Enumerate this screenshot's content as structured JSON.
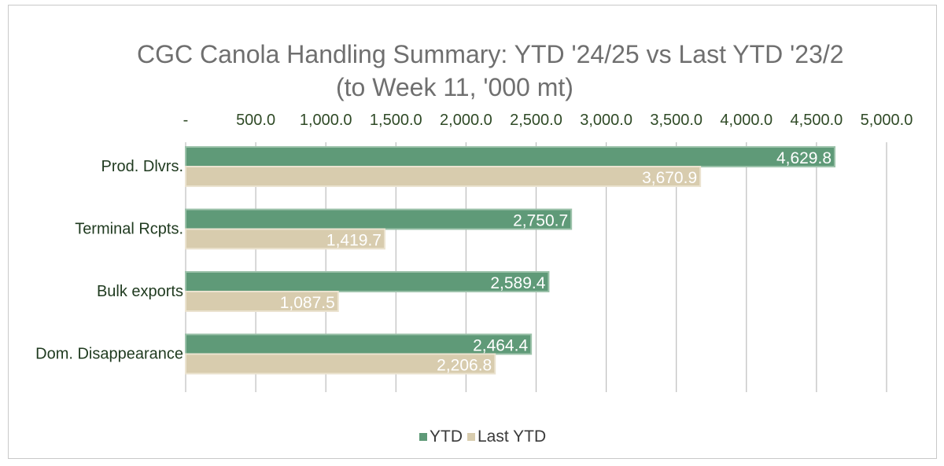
{
  "chart_data": {
    "type": "bar",
    "orientation": "horizontal",
    "title": "CGC Canola Handling Summary: YTD '24/25 vs Last YTD '23/2",
    "subtitle": "(to Week  11,  '000 mt)",
    "categories": [
      "Prod. Dlvrs.",
      "Terminal Rcpts.",
      "Bulk exports",
      "Dom. Disappearance"
    ],
    "series": [
      {
        "name": "YTD",
        "values": [
          4629.8,
          2750.7,
          2589.4,
          2464.4
        ],
        "labels": [
          "4,629.8",
          "2,750.7",
          "2,589.4",
          "2,464.4"
        ],
        "color": "#5f9a78"
      },
      {
        "name": "Last YTD",
        "values": [
          3670.9,
          1419.7,
          1087.5,
          2206.8
        ],
        "labels": [
          "3,670.9",
          "1,419.7",
          "1,087.5",
          "2,206.8"
        ],
        "color": "#d8ccae"
      }
    ],
    "x_ticks": [
      0,
      500,
      1000,
      1500,
      2000,
      2500,
      3000,
      3500,
      4000,
      4500,
      5000
    ],
    "x_tick_labels": [
      "-",
      "500.0",
      "1,000.0",
      "1,500.0",
      "2,000.0",
      "2,500.0",
      "3,000.0",
      "3,500.0",
      "4,000.0",
      "4,500.0",
      "5,000.0"
    ],
    "xlim": [
      0,
      5000
    ],
    "x_axis_position": "top",
    "grid": true,
    "legend_position": "bottom",
    "xlabel": "",
    "ylabel": ""
  }
}
